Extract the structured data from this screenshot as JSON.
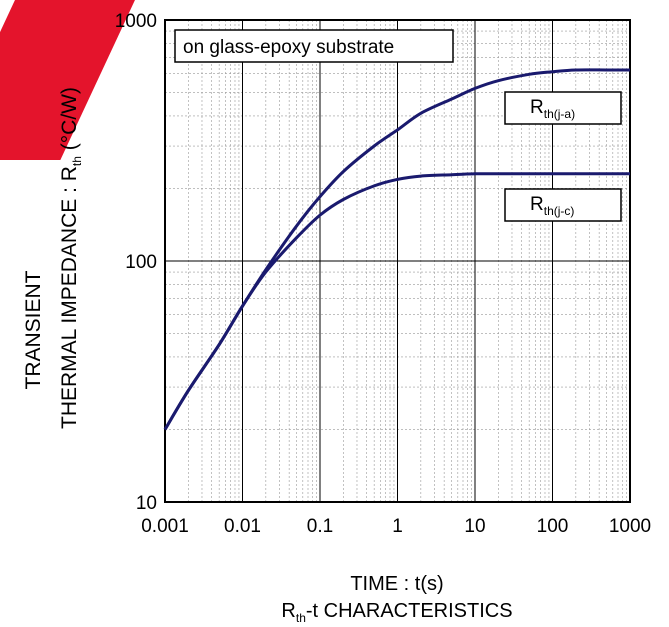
{
  "chart_data": {
    "type": "line",
    "title": "",
    "caption": {
      "main": "R",
      "sub": "th",
      "rest": "-t CHARACTERISTICS"
    },
    "xlabel": "TIME : t(s)",
    "ylabel_line1": "TRANSIENT",
    "ylabel_line2": {
      "main": "THERMAL IMPEDANCE : R",
      "sub": "th",
      "rest": " (°C/W)"
    },
    "xscale": "log",
    "yscale": "log",
    "xlim": [
      0.001,
      1000
    ],
    "ylim": [
      10,
      1000
    ],
    "x_ticks": [
      "0.001",
      "0.01",
      "0.1",
      "1",
      "10",
      "100",
      "1000"
    ],
    "y_ticks": [
      "10",
      "100",
      "1000"
    ],
    "grid": true,
    "annotation_box": "on glass-epoxy substrate",
    "line_color": "#1a1a6e",
    "series": [
      {
        "name": "Rth(j-a)",
        "label": {
          "main": "R",
          "sub": "th(j-a)"
        },
        "x": [
          0.001,
          0.002,
          0.005,
          0.01,
          0.02,
          0.05,
          0.1,
          0.2,
          0.5,
          1,
          2,
          5,
          10,
          20,
          50,
          100,
          200,
          500,
          1000
        ],
        "y": [
          20,
          29,
          45,
          65,
          92,
          140,
          185,
          235,
          300,
          350,
          410,
          470,
          520,
          560,
          595,
          610,
          620,
          620,
          620
        ]
      },
      {
        "name": "Rth(j-c)",
        "label": {
          "main": "R",
          "sub": "th(j-c)"
        },
        "x": [
          0.001,
          0.002,
          0.005,
          0.01,
          0.02,
          0.05,
          0.1,
          0.2,
          0.5,
          1,
          2,
          5,
          10,
          20,
          50,
          100,
          200,
          500,
          1000
        ],
        "y": [
          20,
          29,
          45,
          65,
          90,
          125,
          155,
          180,
          205,
          218,
          225,
          228,
          230,
          230,
          230,
          230,
          230,
          230,
          230
        ]
      }
    ]
  }
}
